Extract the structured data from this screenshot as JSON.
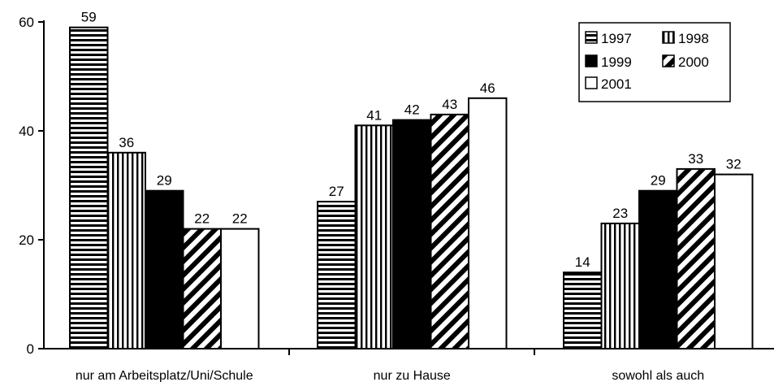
{
  "chart_data": {
    "type": "bar",
    "categories": [
      "nur am Arbeitsplatz/Uni/Schule",
      "nur zu Hause",
      "sowohl als auch"
    ],
    "series": [
      {
        "name": "1997",
        "values": [
          59,
          27,
          14
        ],
        "pattern": "horizontal-stripes"
      },
      {
        "name": "1998",
        "values": [
          36,
          41,
          23
        ],
        "pattern": "vertical-stripes"
      },
      {
        "name": "1999",
        "values": [
          29,
          42,
          29
        ],
        "pattern": "solid-black"
      },
      {
        "name": "2000",
        "values": [
          22,
          43,
          33
        ],
        "pattern": "diagonal-stripes"
      },
      {
        "name": "2001",
        "values": [
          22,
          46,
          32
        ],
        "pattern": "white"
      }
    ],
    "yticks": [
      0,
      20,
      40,
      60
    ],
    "ylim": [
      0,
      60
    ],
    "grid": false,
    "legend_position": "top-right",
    "colors": {
      "ink": "#000000",
      "background": "#ffffff"
    }
  }
}
